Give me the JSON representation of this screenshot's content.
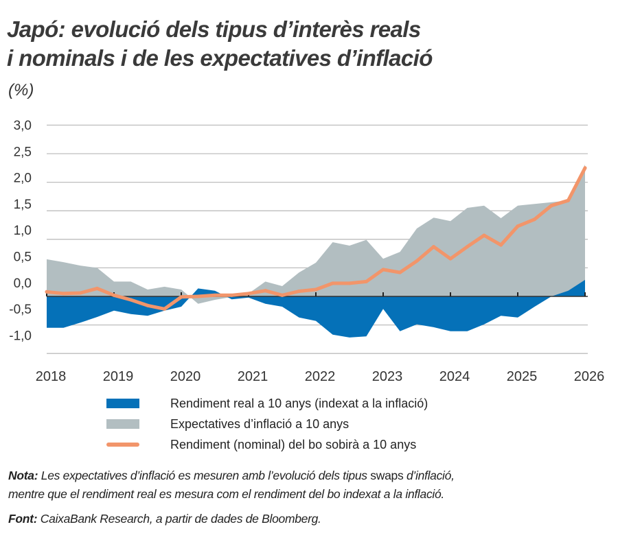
{
  "title_line1": "Japó: evolució dels tipus d’interès reals",
  "title_line2": "i nominals i de les expectatives d’inflació",
  "unit": "(%)",
  "colors": {
    "real": "#0571B8",
    "expectations": "#B2BEC1",
    "nominal": "#F2956A",
    "grid": "#BDBDBD"
  },
  "legend": [
    {
      "label": "Rendiment real a 10 anys (indexat a la inflació)",
      "color": "#0571B8",
      "kind": "area"
    },
    {
      "label": "Expectatives d’inflació a 10 anys",
      "color": "#B2BEC1",
      "kind": "area"
    },
    {
      "label": "Rendiment (nominal) del bo sobirà a 10 anys",
      "color": "#F2956A",
      "kind": "line"
    }
  ],
  "note": {
    "label": "Nota:",
    "text_a": " Les expectatives d’inflació es mesuren amb l’evolució dels tipus ",
    "text_b": "swaps",
    "text_c": " d’inflació,",
    "text_line2": "mentre que el rendiment real es mesura com el rendiment del bo indexat a la inflació."
  },
  "source": {
    "label": "Font:",
    "text": " CaixaBank Research, a partir de dades de Bloomberg."
  },
  "chart_data": {
    "type": "area",
    "title": "Japó: evolució dels tipus d’interès reals i nominals i de les expectatives d’inflació",
    "ylabel": "(%)",
    "ylim": [
      -1.0,
      3.0
    ],
    "xlim": [
      2018,
      2026
    ],
    "grid": true,
    "legend_position": "bottom",
    "y_ticks": [
      "3,0",
      "2,5",
      "2,0",
      "1,5",
      "1,0",
      "0,5",
      "0,0",
      "-0,5",
      "-1,0"
    ],
    "y_tick_values": [
      3.0,
      2.5,
      2.0,
      1.5,
      1.0,
      0.5,
      0.0,
      -0.5,
      -1.0
    ],
    "x_ticks": [
      "2018",
      "2019",
      "2020",
      "2021",
      "2022",
      "2023",
      "2024",
      "2025",
      "2026"
    ],
    "x": [
      2018.0,
      2018.25,
      2018.5,
      2018.75,
      2019.0,
      2019.25,
      2019.5,
      2019.75,
      2020.0,
      2020.25,
      2020.5,
      2020.75,
      2021.0,
      2021.25,
      2021.5,
      2021.75,
      2022.0,
      2022.25,
      2022.5,
      2022.75,
      2023.0,
      2023.25,
      2023.5,
      2023.75,
      2024.0,
      2024.25,
      2024.5,
      2024.75,
      2025.0,
      2025.25,
      2025.5,
      2025.75,
      2026.0
    ],
    "series": [
      {
        "name": "Expectatives d’inflació a 10 anys",
        "values": [
          0.65,
          0.6,
          0.54,
          0.5,
          0.26,
          0.26,
          0.12,
          0.17,
          0.12,
          -0.13,
          -0.06,
          -0.01,
          0.05,
          0.26,
          0.18,
          0.42,
          0.59,
          0.95,
          0.89,
          0.99,
          0.66,
          0.78,
          1.19,
          1.38,
          1.32,
          1.55,
          1.59,
          1.37,
          1.59,
          1.62,
          1.65,
          1.68,
          2.31
        ]
      },
      {
        "name": "Rendiment real a 10 anys (indexat a la inflació)",
        "values": [
          -0.55,
          -0.55,
          -0.46,
          -0.36,
          -0.25,
          -0.31,
          -0.34,
          -0.25,
          -0.18,
          0.14,
          0.1,
          -0.05,
          -0.02,
          -0.13,
          -0.18,
          -0.37,
          -0.43,
          -0.67,
          -0.72,
          -0.7,
          -0.22,
          -0.61,
          -0.49,
          -0.54,
          -0.61,
          -0.61,
          -0.49,
          -0.34,
          -0.37,
          -0.18,
          0.0,
          0.1,
          0.29
        ]
      },
      {
        "name": "Rendiment (nominal) del bo sobirà a 10 anys",
        "values": [
          0.08,
          0.05,
          0.06,
          0.14,
          0.02,
          -0.06,
          -0.16,
          -0.22,
          -0.01,
          0.0,
          0.02,
          0.02,
          0.05,
          0.1,
          0.02,
          0.09,
          0.12,
          0.23,
          0.23,
          0.26,
          0.47,
          0.42,
          0.62,
          0.87,
          0.66,
          0.87,
          1.07,
          0.9,
          1.23,
          1.35,
          1.59,
          1.68,
          2.25
        ]
      }
    ]
  }
}
